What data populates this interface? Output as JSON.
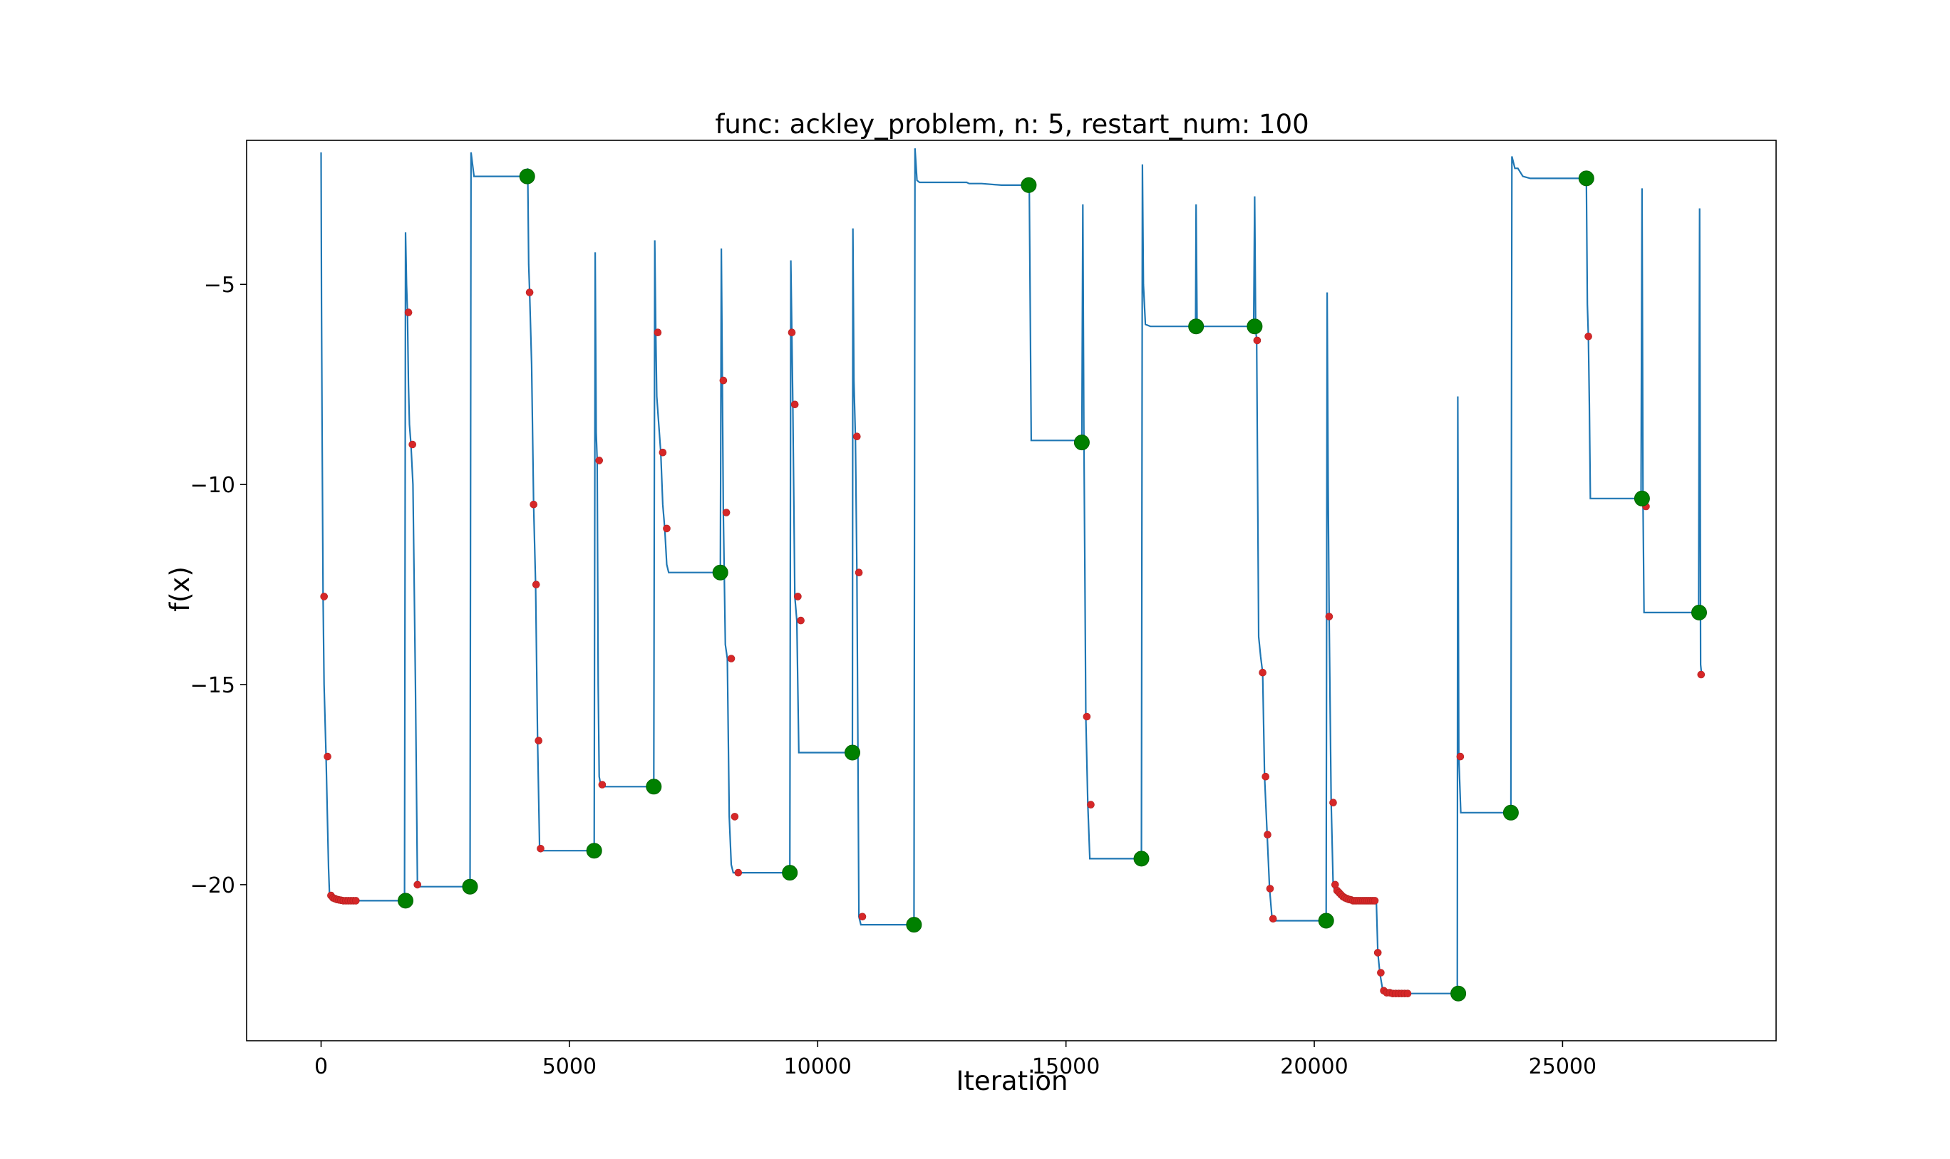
{
  "chart_data": {
    "type": "line",
    "title": "func: ackley_problem, n: 5, restart_num: 100",
    "xlabel": "Iteration",
    "ylabel": "f(x)",
    "xlim": [
      -1500,
      29300
    ],
    "ylim": [
      -23.9,
      -1.4
    ],
    "xticks": [
      0,
      5000,
      10000,
      15000,
      20000,
      25000
    ],
    "yticks": [
      -5,
      -10,
      -15,
      -20
    ],
    "grid": false,
    "legend": "none",
    "colors": {
      "line": "#1f77b4",
      "small_markers": "#d62728",
      "large_markers": "#008000"
    },
    "series": [
      {
        "type": "line",
        "x": [
          0,
          8,
          20,
          40,
          60,
          100,
          130,
          150,
          170,
          200,
          260,
          350,
          500,
          700,
          1000,
          1300,
          1680,
          1700,
          1720,
          1740,
          1760,
          1780,
          1810,
          1850,
          1900,
          1940,
          1960,
          2200,
          2600,
          3000,
          3020,
          3040,
          3080,
          3200,
          3600,
          4000,
          4150,
          4160,
          4180,
          4200,
          4240,
          4280,
          4320,
          4360,
          4400,
          4450,
          4500,
          4800,
          5100,
          5400,
          5500,
          5520,
          5540,
          5560,
          5580,
          5600,
          5630,
          5660,
          5700,
          6000,
          6300,
          6600,
          6700,
          6720,
          6740,
          6760,
          6800,
          6840,
          6880,
          6920,
          6960,
          7000,
          7200,
          7600,
          8000,
          8040,
          8060,
          8080,
          8100,
          8140,
          8180,
          8220,
          8260,
          8300,
          8350,
          8400,
          8800,
          9200,
          9440,
          9460,
          9480,
          9500,
          9540,
          9580,
          9620,
          9660,
          9700,
          10000,
          10400,
          10700,
          10710,
          10730,
          10760,
          10790,
          10830,
          10870,
          10900,
          10950,
          11300,
          11700,
          11940,
          11960,
          11980,
          12000,
          12050,
          12100,
          12500,
          13000,
          13050,
          13300,
          13700,
          14200,
          14250,
          14260,
          14300,
          15000,
          15300,
          15320,
          15340,
          15360,
          15380,
          15400,
          15440,
          15480,
          15520,
          16000,
          16500,
          16520,
          16540,
          16560,
          16600,
          16700,
          17200,
          17610,
          17620,
          17640,
          17660,
          17700,
          18200,
          18780,
          18800,
          18820,
          18840,
          18880,
          18920,
          18960,
          19000,
          19050,
          19100,
          19150,
          19200,
          19600,
          20000,
          20240,
          20260,
          20280,
          20300,
          20340,
          20380,
          20420,
          20460,
          20500,
          20560,
          20620,
          20700,
          20800,
          20900,
          21000,
          21100,
          21200,
          21250,
          21280,
          21320,
          21380,
          21420,
          21460,
          21500,
          21600,
          21750,
          21900,
          22200,
          22600,
          22880,
          22890,
          22910,
          22950,
          23000,
          23400,
          23800,
          23960,
          23980,
          24000,
          24040,
          24100,
          24200,
          24350,
          24500,
          25000,
          25450,
          25480,
          25500,
          25520,
          25540,
          25560,
          25580,
          25600,
          26000,
          26580,
          26600,
          26620,
          26640,
          26680,
          27000,
          27400,
          27740,
          27760,
          27780,
          27800
        ],
        "y": [
          -1.7,
          -5.5,
          -8.5,
          -12.8,
          -15.0,
          -16.8,
          -18.5,
          -19.6,
          -20.27,
          -20.33,
          -20.38,
          -20.4,
          -20.4,
          -20.4,
          -20.4,
          -20.4,
          -20.4,
          -3.7,
          -5.0,
          -5.7,
          -7.5,
          -8.5,
          -9.0,
          -10.0,
          -15.0,
          -20.0,
          -20.05,
          -20.05,
          -20.05,
          -20.05,
          -1.7,
          -1.9,
          -2.3,
          -2.3,
          -2.3,
          -2.3,
          -2.3,
          -2.1,
          -4.5,
          -5.2,
          -7.0,
          -10.5,
          -12.5,
          -16.4,
          -19.1,
          -19.15,
          -19.15,
          -19.15,
          -19.15,
          -19.15,
          -19.15,
          -4.2,
          -8.7,
          -9.4,
          -15.0,
          -17.3,
          -17.5,
          -17.55,
          -17.55,
          -17.55,
          -17.55,
          -17.55,
          -17.55,
          -3.9,
          -6.2,
          -7.8,
          -8.5,
          -9.2,
          -10.5,
          -11.1,
          -12.0,
          -12.2,
          -12.2,
          -12.2,
          -12.2,
          -12.2,
          -4.1,
          -7.4,
          -10.7,
          -14.0,
          -14.35,
          -18.3,
          -19.5,
          -19.7,
          -19.7,
          -19.7,
          -19.7,
          -19.7,
          -19.7,
          -4.4,
          -6.2,
          -8.0,
          -12.8,
          -13.4,
          -16.7,
          -16.7,
          -16.7,
          -16.7,
          -16.7,
          -16.7,
          -3.6,
          -7.4,
          -8.8,
          -12.2,
          -20.8,
          -21.0,
          -21.0,
          -21.0,
          -21.0,
          -21.0,
          -21.0,
          -1.6,
          -2.0,
          -2.4,
          -2.45,
          -2.45,
          -2.45,
          -2.45,
          -2.48,
          -2.48,
          -2.52,
          -2.52,
          -2.52,
          -2.4,
          -8.9,
          -8.9,
          -8.9,
          -8.95,
          -3.0,
          -8.5,
          -12.0,
          -15.8,
          -18.0,
          -19.35,
          -19.35,
          -19.35,
          -19.35,
          -19.35,
          -2.0,
          -5.0,
          -6.0,
          -6.05,
          -6.05,
          -6.05,
          -3.0,
          -6.0,
          -6.05,
          -6.05,
          -6.05,
          -6.05,
          -2.8,
          -6.1,
          -6.4,
          -13.8,
          -14.3,
          -14.7,
          -17.3,
          -18.7,
          -20.1,
          -20.85,
          -20.9,
          -20.9,
          -20.9,
          -20.9,
          -5.2,
          -10.0,
          -13.3,
          -17.9,
          -20.0,
          -20.2,
          -20.25,
          -20.3,
          -20.35,
          -20.38,
          -20.4,
          -20.4,
          -20.4,
          -20.4,
          -20.4,
          -20.4,
          -20.4,
          -21.7,
          -22.2,
          -22.65,
          -22.7,
          -22.72,
          -22.72,
          -22.72,
          -22.72,
          -22.72,
          -22.72,
          -22.72,
          -22.72,
          -7.8,
          -16.8,
          -18.2,
          -18.2,
          -18.2,
          -18.2,
          -18.2,
          -1.8,
          -1.9,
          -2.1,
          -2.1,
          -2.3,
          -2.35,
          -2.35,
          -2.35,
          -2.35,
          -2.4,
          -5.5,
          -6.3,
          -8.0,
          -10.35,
          -10.35,
          -10.35,
          -10.35,
          -10.35,
          -2.6,
          -10.5,
          -13.2,
          -13.2,
          -13.2,
          -13.2,
          -13.2,
          -3.1,
          -14.5,
          -14.75
        ]
      },
      {
        "type": "scatter",
        "name": "",
        "marker": "small",
        "x": [
          60,
          130,
          200,
          240,
          280,
          320,
          360,
          400,
          450,
          500,
          550,
          600,
          650,
          700,
          1760,
          1840,
          1940,
          4200,
          4280,
          4330,
          4380,
          4420,
          5600,
          5660,
          6780,
          6880,
          6960,
          8100,
          8160,
          8260,
          8330,
          8400,
          9480,
          9540,
          9600,
          9660,
          10790,
          10830,
          10900,
          15420,
          15500,
          18850,
          18960,
          19020,
          19060,
          19110,
          19170,
          20300,
          20380,
          20420,
          20460,
          20500,
          20540,
          20580,
          20620,
          20660,
          20700,
          20740,
          20780,
          20820,
          20860,
          20900,
          20940,
          20980,
          21020,
          21060,
          21100,
          21140,
          21180,
          21220,
          21280,
          21340,
          21400,
          21460,
          21520,
          21580,
          21640,
          21700,
          21760,
          21820,
          21880,
          22940,
          25520,
          26640,
          26680,
          27790
        ],
        "y": [
          -12.8,
          -16.8,
          -20.27,
          -20.33,
          -20.35,
          -20.37,
          -20.38,
          -20.39,
          -20.4,
          -20.4,
          -20.4,
          -20.4,
          -20.4,
          -20.4,
          -5.7,
          -9.0,
          -20.0,
          -5.2,
          -10.5,
          -12.5,
          -16.4,
          -19.1,
          -9.4,
          -17.5,
          -6.2,
          -9.2,
          -11.1,
          -7.4,
          -10.7,
          -14.35,
          -18.3,
          -19.7,
          -6.2,
          -8.0,
          -12.8,
          -13.4,
          -8.8,
          -12.2,
          -20.8,
          -15.8,
          -18.0,
          -6.4,
          -14.7,
          -17.3,
          -18.75,
          -20.1,
          -20.85,
          -13.3,
          -17.95,
          -20.0,
          -20.15,
          -20.2,
          -20.25,
          -20.3,
          -20.33,
          -20.35,
          -20.37,
          -20.38,
          -20.4,
          -20.4,
          -20.4,
          -20.4,
          -20.4,
          -20.4,
          -20.4,
          -20.4,
          -20.4,
          -20.4,
          -20.4,
          -20.4,
          -21.7,
          -22.2,
          -22.65,
          -22.7,
          -22.7,
          -22.72,
          -22.72,
          -22.72,
          -22.72,
          -22.72,
          -22.72,
          -16.8,
          -6.3,
          -10.45,
          -10.55,
          -14.75
        ]
      },
      {
        "type": "scatter",
        "name": "",
        "marker": "large",
        "x": [
          1700,
          3000,
          4150,
          5500,
          6700,
          8040,
          9440,
          10700,
          11940,
          14250,
          15320,
          16520,
          17620,
          18800,
          20240,
          22900,
          23960,
          25480,
          26600,
          27750
        ],
        "y": [
          -20.4,
          -20.05,
          -2.3,
          -19.15,
          -17.55,
          -12.2,
          -19.7,
          -16.7,
          -21.0,
          -2.52,
          -8.95,
          -19.35,
          -6.05,
          -6.05,
          -20.9,
          -22.72,
          -18.2,
          -2.35,
          -10.35,
          -13.2
        ]
      }
    ]
  }
}
